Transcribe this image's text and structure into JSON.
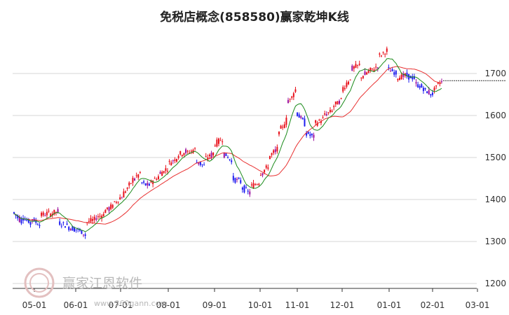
{
  "chart_data": {
    "type": "candlestick",
    "title": "免税店概念(858580)赢家乾坤K线",
    "xlabel": "",
    "ylabel": "",
    "ylim": [
      1200,
      1780
    ],
    "yticks": [
      1200,
      1300,
      1400,
      1500,
      1600,
      1700
    ],
    "xticks": [
      "05-01",
      "06-01",
      "07-01",
      "08-01",
      "09-01",
      "10-01",
      "11-01",
      "12-01",
      "01-01",
      "02-01",
      "03-01"
    ],
    "grid": "horizontal",
    "last_price_line": 1683,
    "colors": {
      "up": "#e8101a",
      "down": "#1d1df0",
      "neutral": "#9b0f9e",
      "ma_short": "#1a8a1a",
      "ma_long": "#e83030"
    },
    "series": [
      {
        "kind": "ohlc",
        "weekly": [
          [
            1370,
            1348
          ],
          [
            1360,
            1342
          ],
          [
            1355,
            1340
          ],
          [
            1362,
            1368
          ],
          [
            1365,
            1372
          ],
          [
            1345,
            1338
          ],
          [
            1335,
            1328
          ],
          [
            1330,
            1315
          ],
          [
            1345,
            1352
          ],
          [
            1356,
            1365
          ],
          [
            1372,
            1385
          ],
          [
            1390,
            1408
          ],
          [
            1410,
            1440
          ],
          [
            1445,
            1462
          ],
          [
            1440,
            1432
          ],
          [
            1440,
            1455
          ],
          [
            1460,
            1475
          ],
          [
            1485,
            1500
          ],
          [
            1505,
            1515
          ],
          [
            1510,
            1520
          ],
          [
            1492,
            1480
          ],
          [
            1496,
            1510
          ],
          [
            1530,
            1545
          ],
          [
            1510,
            1492
          ],
          [
            1450,
            1442
          ],
          [
            1430,
            1415
          ],
          [
            1430,
            1442
          ],
          [
            1460,
            1478
          ],
          [
            1500,
            1520
          ],
          [
            1555,
            1590
          ],
          [
            1630,
            1662
          ],
          [
            1610,
            1580
          ],
          [
            1560,
            1548
          ],
          [
            1580,
            1592
          ],
          [
            1600,
            1612
          ],
          [
            1620,
            1638
          ],
          [
            1660,
            1690
          ],
          [
            1710,
            1720
          ],
          [
            1690,
            1705
          ],
          [
            1705,
            1718
          ],
          [
            1740,
            1755
          ],
          [
            1710,
            1700
          ],
          [
            1690,
            1695
          ],
          [
            1695,
            1688
          ],
          [
            1675,
            1665
          ],
          [
            1660,
            1650
          ],
          [
            1660,
            1685
          ]
        ]
      }
    ]
  },
  "watermark": {
    "text": "赢家江恩软件",
    "url": "www.360gann.com"
  }
}
